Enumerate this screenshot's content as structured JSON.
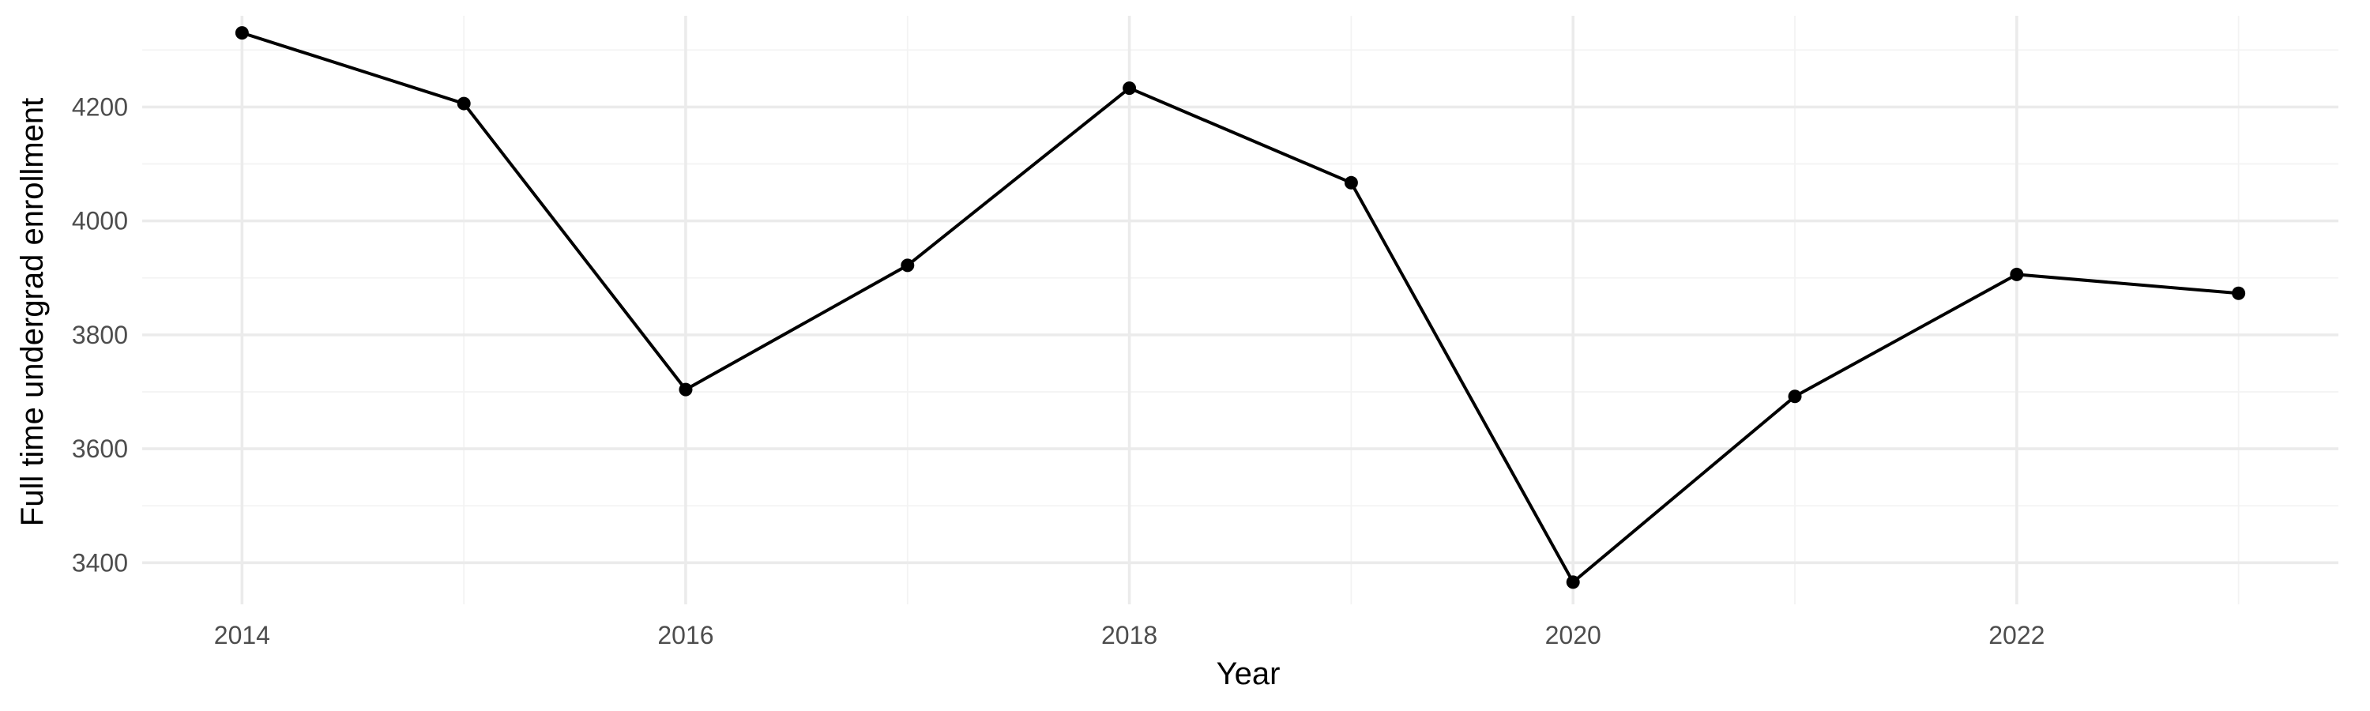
{
  "chart_data": {
    "type": "line",
    "title": "",
    "xlabel": "Year",
    "ylabel": "Full time undergrad enrollment",
    "x": [
      2014,
      2015,
      2016,
      2017,
      2018,
      2019,
      2020,
      2021,
      2022,
      2023
    ],
    "series": [
      {
        "values": [
          4330,
          4206,
          3704,
          3922,
          4233,
          4067,
          3366,
          3692,
          3906,
          3873
        ]
      }
    ],
    "xlim": [
      2013.55,
      2023.45
    ],
    "ylim": [
      3327,
      4360
    ],
    "x_ticks": [
      2014,
      2016,
      2018,
      2020,
      2022
    ],
    "x_tick_labels": [
      "2014",
      "2016",
      "2018",
      "2020",
      "2022"
    ],
    "y_ticks": [
      3400,
      3600,
      3800,
      4000,
      4200
    ],
    "y_tick_labels": [
      "3400",
      "3600",
      "3800",
      "4000",
      "4200"
    ],
    "grid": true,
    "legend": "none",
    "line_color": "#000000",
    "point_color": "#000000"
  }
}
